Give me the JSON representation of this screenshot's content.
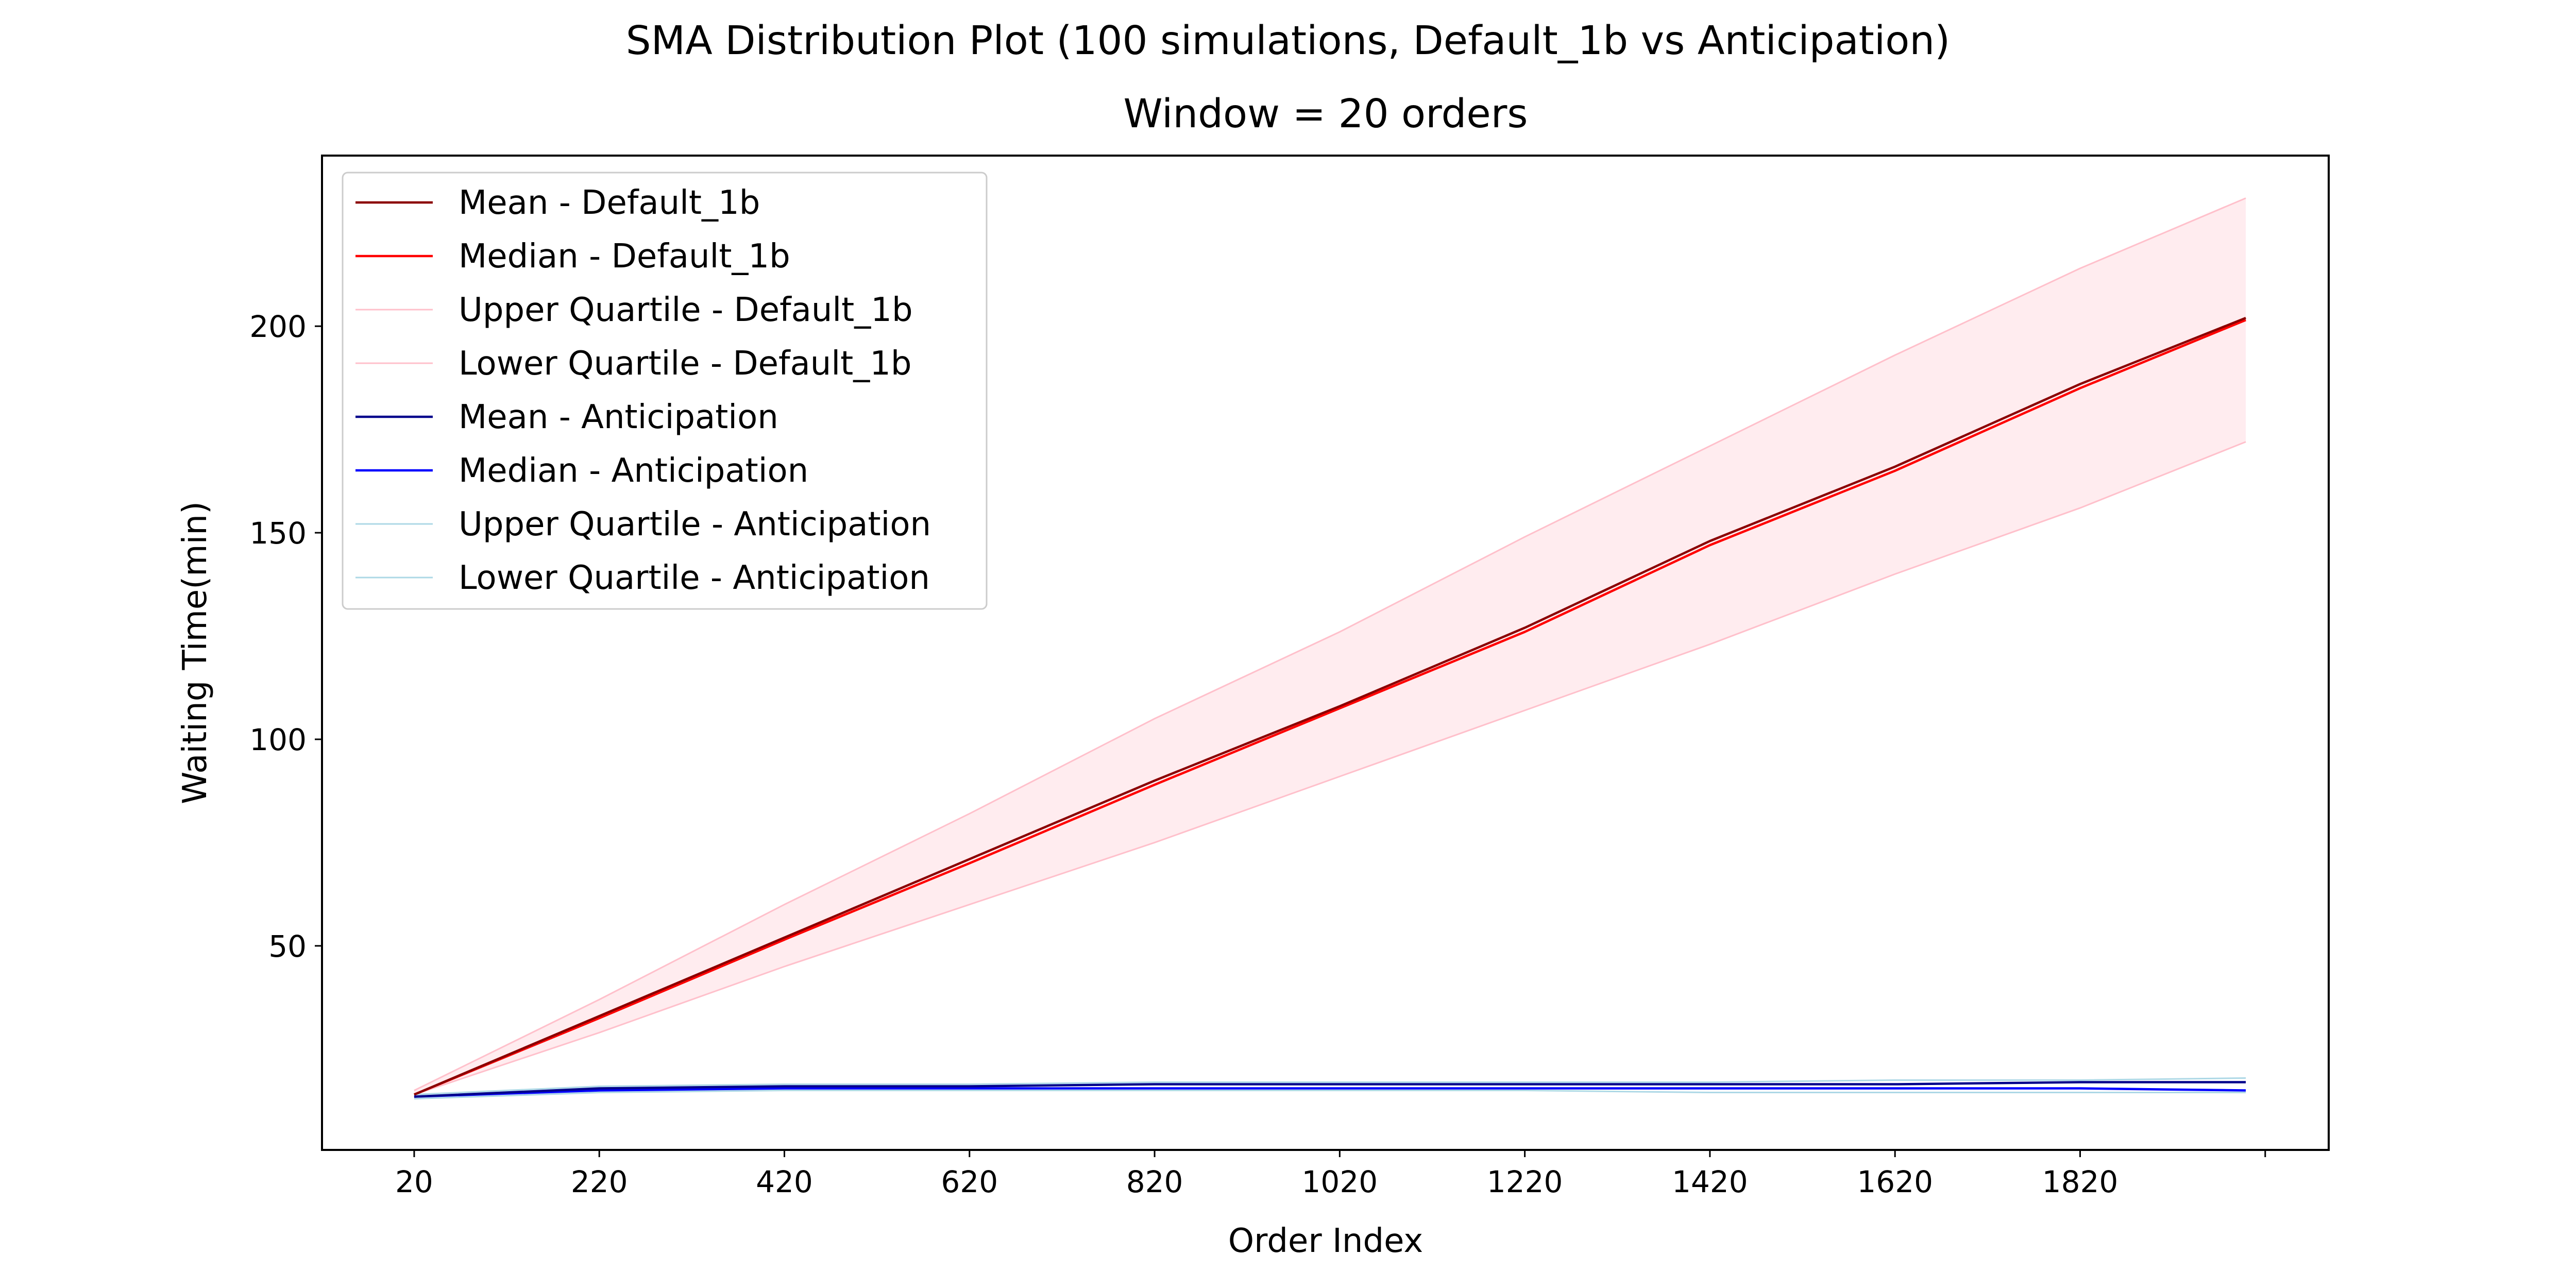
{
  "figure": {
    "suptitle": "SMA Distribution Plot (100 simulations, Default_1b vs Anticipation)"
  },
  "chart_data": {
    "type": "line",
    "title": "Window = 20 orders",
    "xlabel": "Order Index",
    "ylabel": "Waiting Time(min)",
    "xlim": [
      -79.6,
      2088.6
    ],
    "ylim": [
      0.6,
      241.3
    ],
    "xticks": [
      20,
      220,
      420,
      620,
      820,
      1020,
      1220,
      1420,
      1620,
      1820,
      2020
    ],
    "xtick_labels": [
      "20",
      "220",
      "420",
      "620",
      "820",
      "1020",
      "1220",
      "1420",
      "1620",
      "1820",
      ""
    ],
    "yticks": [
      50,
      100,
      150,
      200
    ],
    "ytick_labels": [
      "50",
      "100",
      "150",
      "200"
    ],
    "grid": false,
    "legend_position": "upper-left",
    "fill_bands": [
      {
        "between": [
          "Upper Quartile - Default_1b",
          "Lower Quartile - Default_1b"
        ],
        "color": "#ffc0cb",
        "opacity": 0.3
      }
    ],
    "series": [
      {
        "name": "Mean - Default_1b",
        "color": "#8b0000",
        "width": 4.5,
        "x": [
          20,
          220,
          420,
          620,
          820,
          1020,
          1220,
          1420,
          1620,
          1820,
          1999
        ],
        "y": [
          14,
          33,
          52,
          71,
          90,
          108,
          127,
          148,
          166,
          186,
          202
        ]
      },
      {
        "name": "Median - Default_1b",
        "color": "#ff0000",
        "width": 4.5,
        "x": [
          20,
          220,
          420,
          620,
          820,
          1020,
          1220,
          1420,
          1620,
          1820,
          1999
        ],
        "y": [
          14,
          32.5,
          51.5,
          70,
          89,
          107.5,
          126,
          147,
          165,
          185,
          201.5
        ]
      },
      {
        "name": "Upper Quartile - Default_1b",
        "color": "#ffc0cb",
        "width": 3,
        "x": [
          20,
          220,
          420,
          620,
          820,
          1020,
          1220,
          1420,
          1620,
          1820,
          1999
        ],
        "y": [
          15,
          37,
          60,
          82,
          105,
          126,
          149,
          171,
          193,
          214,
          231
        ]
      },
      {
        "name": "Lower Quartile - Default_1b",
        "color": "#ffc0cb",
        "width": 3,
        "x": [
          20,
          220,
          420,
          620,
          820,
          1020,
          1220,
          1420,
          1620,
          1820,
          1999
        ],
        "y": [
          14,
          29,
          45,
          60,
          75,
          91,
          107,
          123,
          140,
          156,
          172
        ]
      },
      {
        "name": "Mean - Anticipation",
        "color": "#00008b",
        "width": 4.5,
        "x": [
          20,
          220,
          420,
          620,
          820,
          1020,
          1220,
          1420,
          1620,
          1820,
          1999
        ],
        "y": [
          13.5,
          15.5,
          16,
          16,
          16.5,
          16.5,
          16.5,
          16.5,
          16.5,
          17,
          17
        ]
      },
      {
        "name": "Median - Anticipation",
        "color": "#0000ff",
        "width": 4.5,
        "x": [
          20,
          220,
          420,
          620,
          820,
          1020,
          1220,
          1420,
          1620,
          1820,
          1999
        ],
        "y": [
          13.5,
          15,
          15.5,
          15.5,
          15.5,
          15.5,
          15.5,
          15.5,
          15.5,
          15.5,
          15
        ]
      },
      {
        "name": "Upper Quartile - Anticipation",
        "color": "#add8e6",
        "width": 3,
        "x": [
          20,
          220,
          420,
          620,
          820,
          1020,
          1220,
          1420,
          1620,
          1820,
          1999
        ],
        "y": [
          14,
          16,
          16.5,
          16.5,
          17,
          17,
          17,
          17,
          17.5,
          17.5,
          18
        ]
      },
      {
        "name": "Lower Quartile - Anticipation",
        "color": "#add8e6",
        "width": 3,
        "x": [
          20,
          220,
          420,
          620,
          820,
          1020,
          1220,
          1420,
          1620,
          1820,
          1999
        ],
        "y": [
          13,
          14.5,
          15,
          15,
          15,
          15,
          15,
          14.5,
          14.5,
          14.5,
          14.5
        ]
      }
    ]
  }
}
